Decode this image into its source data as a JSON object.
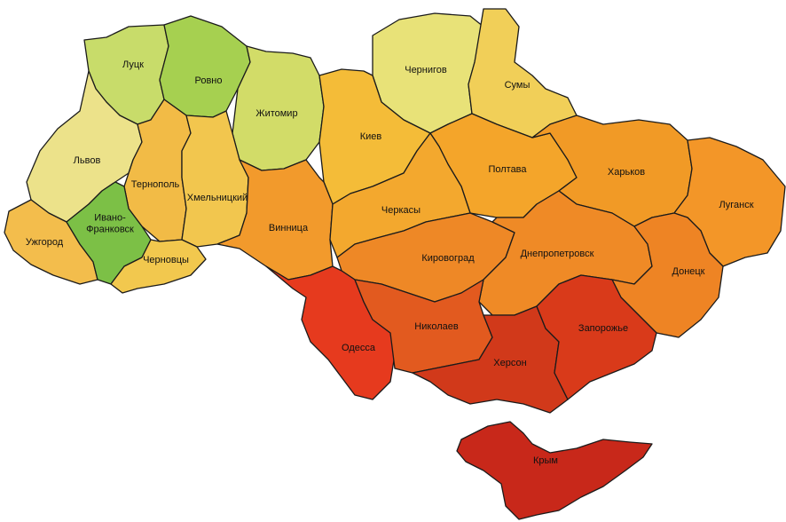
{
  "map": {
    "regions": [
      {
        "id": "lutsk",
        "label": [
          "Луцк"
        ],
        "color": "#c8dc6a"
      },
      {
        "id": "rovno",
        "label": [
          "Ровно"
        ],
        "color": "#a6d050"
      },
      {
        "id": "zhitomir",
        "label": [
          "Житомир"
        ],
        "color": "#d2dc68"
      },
      {
        "id": "chernigov",
        "label": [
          "Чернигов"
        ],
        "color": "#e8e278"
      },
      {
        "id": "sumy",
        "label": [
          "Сумы"
        ],
        "color": "#f1cf58"
      },
      {
        "id": "lvov",
        "label": [
          "Львов"
        ],
        "color": "#ece28a"
      },
      {
        "id": "ternopol",
        "label": [
          "Тернополь"
        ],
        "color": "#f2bb46"
      },
      {
        "id": "khmelnitsky",
        "label": [
          "Хмельницкий"
        ],
        "color": "#f2c64e"
      },
      {
        "id": "kiev",
        "label": [
          "Киев"
        ],
        "color": "#f4bc38"
      },
      {
        "id": "poltava",
        "label": [
          "Полтава"
        ],
        "color": "#f4a52a"
      },
      {
        "id": "kharkov",
        "label": [
          "Харьков"
        ],
        "color": "#f19a26"
      },
      {
        "id": "lugansk",
        "label": [
          "Луганск"
        ],
        "color": "#f39628"
      },
      {
        "id": "uzhgorod",
        "label": [
          "Ужгород"
        ],
        "color": "#f3bd4c"
      },
      {
        "id": "ivano-frankovsk",
        "label": [
          "Ивано-",
          "Франковск"
        ],
        "color": "#7cc046"
      },
      {
        "id": "chernovtsy",
        "label": [
          "Черновцы"
        ],
        "color": "#f2c84e"
      },
      {
        "id": "vinnitsa",
        "label": [
          "Винница"
        ],
        "color": "#f29a2c"
      },
      {
        "id": "cherkasy",
        "label": [
          "Черкасы"
        ],
        "color": "#f3a82e"
      },
      {
        "id": "kirovograd",
        "label": [
          "Кировоград"
        ],
        "color": "#ee8826"
      },
      {
        "id": "dnepropetrovsk",
        "label": [
          "Днепропетровск"
        ],
        "color": "#ef8a26"
      },
      {
        "id": "donetsk",
        "label": [
          "Донецк"
        ],
        "color": "#ee8424"
      },
      {
        "id": "odessa",
        "label": [
          "Одесса"
        ],
        "color": "#e63a1e"
      },
      {
        "id": "nikolaev",
        "label": [
          "Николаев"
        ],
        "color": "#e25a1f"
      },
      {
        "id": "kherson",
        "label": [
          "Херсон"
        ],
        "color": "#d1391a"
      },
      {
        "id": "zaporozhye",
        "label": [
          "Запорожье"
        ],
        "color": "#d93a1a"
      },
      {
        "id": "crimea",
        "label": [
          "Крым"
        ],
        "color": "#c8281a"
      }
    ]
  }
}
